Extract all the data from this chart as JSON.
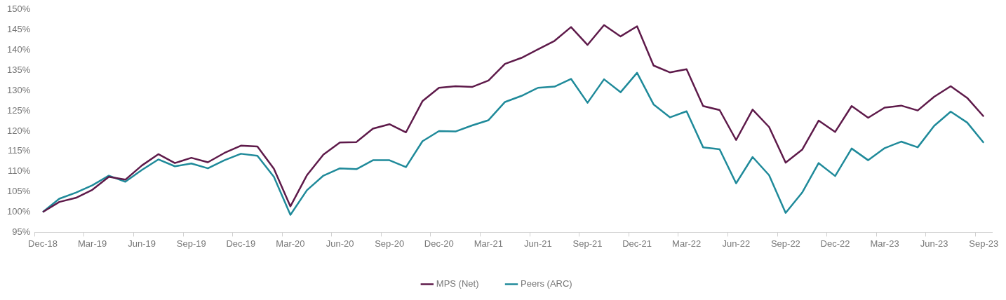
{
  "chart_data": {
    "type": "line",
    "categories": [
      "Dec-18",
      null,
      null,
      "Mar-19",
      null,
      null,
      "Jun-19",
      null,
      null,
      "Sep-19",
      null,
      null,
      "Dec-19",
      null,
      null,
      "Mar-20",
      null,
      null,
      "Jun-20",
      null,
      null,
      "Sep-20",
      null,
      null,
      "Dec-20",
      null,
      null,
      "Mar-21",
      null,
      null,
      "Jun-21",
      null,
      null,
      "Sep-21",
      null,
      null,
      "Dec-21",
      null,
      null,
      "Mar-22",
      null,
      null,
      "Jun-22",
      null,
      null,
      "Sep-22",
      null,
      null,
      "Dec-22",
      null,
      null,
      "Mar-23",
      null,
      null,
      "Jun-23",
      null,
      null,
      "Sep-23"
    ],
    "series": [
      {
        "name": "MPS (Net)",
        "color": "#5e1a4a",
        "values": [
          100,
          102.5,
          103.5,
          105.5,
          108.7,
          108.0,
          111.5,
          114.3,
          112.1,
          113.4,
          112.3,
          114.6,
          116.4,
          116.2,
          110.7,
          101.4,
          109.1,
          114.2,
          117.2,
          117.3,
          120.6,
          121.7,
          119.7,
          127.4,
          130.7,
          131.1,
          130.9,
          132.5,
          136.6,
          138.1,
          140.2,
          142.3,
          145.7,
          141.3,
          146.2,
          143.4,
          145.9,
          136.2,
          134.5,
          135.3,
          126.2,
          125.2,
          117.8,
          125.3,
          121.0,
          112.2,
          115.4,
          122.6,
          119.8,
          126.2,
          123.3,
          125.8,
          126.3,
          125.1,
          128.5,
          131.1,
          128.2,
          123.6
        ]
      },
      {
        "name": "Peers (ARC)",
        "color": "#1f8a9a",
        "values": [
          100,
          103.3,
          104.8,
          106.6,
          109.0,
          107.5,
          110.4,
          113.0,
          111.3,
          112.0,
          110.8,
          112.8,
          114.4,
          113.9,
          108.7,
          99.3,
          105.4,
          109.0,
          110.8,
          110.6,
          112.8,
          112.8,
          111.1,
          117.5,
          120.0,
          119.9,
          121.4,
          122.7,
          127.2,
          128.7,
          130.7,
          131.0,
          132.9,
          127.0,
          132.8,
          129.6,
          134.4,
          126.6,
          123.4,
          124.9,
          116.0,
          115.5,
          107.1,
          113.6,
          109.1,
          99.8,
          104.8,
          112.1,
          108.9,
          115.7,
          112.8,
          115.8,
          117.4,
          116.0,
          121.3,
          124.8,
          122.1,
          117.1
        ]
      }
    ],
    "ylim": [
      95,
      150
    ],
    "yticks": [
      {
        "value": 95,
        "label": "95%"
      },
      {
        "value": 100,
        "label": "100%"
      },
      {
        "value": 105,
        "label": "105%"
      },
      {
        "value": 110,
        "label": "110%"
      },
      {
        "value": 115,
        "label": "115%"
      },
      {
        "value": 120,
        "label": "120%"
      },
      {
        "value": 125,
        "label": "125%"
      },
      {
        "value": 130,
        "label": "130%"
      },
      {
        "value": 135,
        "label": "135%"
      },
      {
        "value": 140,
        "label": "140%"
      },
      {
        "value": 145,
        "label": "145%"
      },
      {
        "value": 150,
        "label": "150%"
      }
    ],
    "grid": false,
    "legend": "bottom",
    "marker": "none",
    "line_style": "solid"
  }
}
